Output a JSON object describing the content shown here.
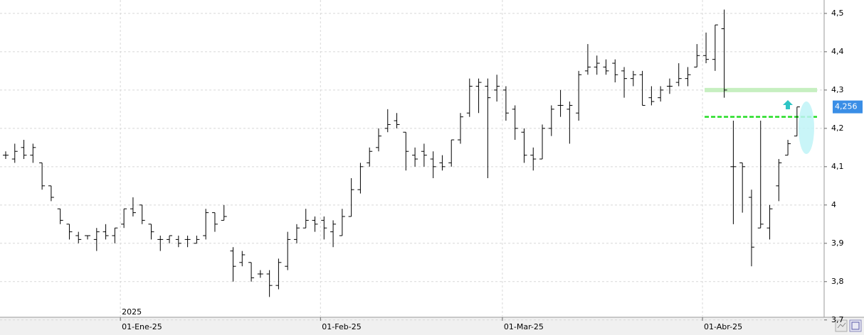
{
  "chart_data": {
    "type": "ohlc",
    "year_label": "2025",
    "categories": [
      null,
      null,
      null,
      null,
      null,
      null,
      null,
      null,
      null,
      null,
      null,
      null,
      null,
      "01-Ene-25",
      null,
      null,
      null,
      null,
      null,
      null,
      null,
      null,
      null,
      null,
      null,
      null,
      null,
      null,
      null,
      null,
      null,
      null,
      null,
      null,
      null,
      "01-Feb-25",
      null,
      null,
      null,
      null,
      null,
      null,
      null,
      null,
      null,
      null,
      null,
      null,
      null,
      null,
      null,
      null,
      null,
      null,
      null,
      "01-Mar-25",
      null,
      null,
      null,
      null,
      null,
      null,
      null,
      null,
      null,
      null,
      null,
      null,
      null,
      null,
      null,
      null,
      null,
      null,
      null,
      null,
      null,
      "01-Abr-25",
      null,
      null,
      null,
      null,
      null,
      null,
      null,
      null,
      null,
      null
    ],
    "open": [
      4.13,
      4.12,
      4.15,
      4.13,
      4.11,
      4.05,
      3.99,
      3.95,
      3.92,
      3.92,
      3.91,
      3.93,
      3.92,
      3.95,
      3.99,
      4.0,
      3.95,
      3.91,
      3.91,
      3.91,
      3.91,
      3.9,
      3.92,
      3.98,
      3.96,
      3.88,
      3.85,
      3.85,
      3.82,
      3.82,
      3.79,
      3.84,
      3.91,
      3.94,
      3.96,
      3.96,
      3.93,
      3.92,
      3.97,
      4.04,
      4.11,
      4.15,
      4.2,
      4.22,
      4.19,
      4.13,
      4.14,
      4.12,
      4.11,
      4.11,
      4.17,
      4.24,
      4.31,
      4.31,
      4.3,
      4.3,
      4.25,
      4.19,
      4.13,
      4.12,
      4.2,
      4.26,
      4.25,
      4.24,
      4.35,
      4.36,
      4.36,
      4.37,
      4.35,
      4.33,
      4.34,
      4.28,
      4.28,
      4.31,
      4.32,
      4.33,
      4.36,
      4.39,
      4.38,
      4.46,
      4.1,
      4.11,
      4.02,
      3.94,
      3.94,
      4.05,
      4.13,
      4.18
    ],
    "high": [
      4.14,
      4.16,
      4.17,
      4.16,
      4.11,
      4.05,
      3.99,
      3.95,
      3.93,
      3.92,
      3.94,
      3.95,
      3.94,
      3.99,
      4.02,
      4.0,
      3.95,
      3.92,
      3.92,
      3.92,
      3.92,
      3.92,
      3.99,
      3.98,
      4.0,
      3.89,
      3.88,
      3.85,
      3.83,
      3.83,
      3.86,
      3.93,
      3.95,
      3.99,
      3.97,
      3.97,
      3.96,
      3.99,
      4.07,
      4.11,
      4.15,
      4.2,
      4.25,
      4.24,
      4.19,
      4.15,
      4.16,
      4.14,
      4.13,
      4.17,
      4.24,
      4.33,
      4.33,
      4.33,
      4.34,
      4.31,
      4.26,
      4.2,
      4.15,
      4.21,
      4.26,
      4.3,
      4.27,
      4.35,
      4.42,
      4.39,
      4.38,
      4.38,
      4.36,
      4.35,
      4.35,
      4.31,
      4.31,
      4.33,
      4.37,
      4.36,
      4.42,
      4.45,
      4.47,
      4.51,
      4.22,
      4.11,
      4.04,
      4.22,
      4.0,
      4.12,
      4.17,
      4.256
    ],
    "low": [
      4.12,
      4.11,
      4.12,
      4.11,
      4.04,
      4.01,
      3.95,
      3.91,
      3.9,
      3.91,
      3.88,
      3.91,
      3.9,
      3.94,
      3.97,
      3.95,
      3.91,
      3.88,
      3.9,
      3.89,
      3.89,
      3.9,
      3.91,
      3.93,
      3.96,
      3.8,
      3.84,
      3.8,
      3.81,
      3.76,
      3.78,
      3.83,
      3.9,
      3.94,
      3.93,
      3.91,
      3.89,
      3.92,
      3.97,
      4.03,
      4.1,
      4.14,
      4.19,
      4.2,
      4.09,
      4.1,
      4.1,
      4.07,
      4.09,
      4.1,
      4.16,
      4.23,
      4.24,
      4.07,
      4.27,
      4.22,
      4.17,
      4.11,
      4.09,
      4.12,
      4.18,
      4.23,
      4.16,
      4.22,
      4.34,
      4.34,
      4.34,
      4.32,
      4.28,
      4.31,
      4.26,
      4.26,
      4.27,
      4.29,
      4.31,
      4.31,
      4.36,
      4.37,
      4.35,
      4.28,
      3.95,
      3.98,
      3.84,
      3.94,
      3.91,
      4.01,
      4.13,
      4.18
    ],
    "close": [
      4.13,
      4.14,
      4.13,
      4.15,
      4.05,
      4.02,
      3.96,
      3.93,
      3.91,
      3.92,
      3.93,
      3.92,
      3.94,
      3.99,
      3.98,
      3.96,
      3.93,
      3.91,
      3.92,
      3.9,
      3.91,
      3.91,
      3.98,
      3.95,
      3.97,
      3.84,
      3.87,
      3.81,
      3.82,
      3.79,
      3.85,
      3.91,
      3.94,
      3.96,
      3.95,
      3.94,
      3.95,
      3.97,
      4.04,
      4.1,
      4.14,
      4.18,
      4.21,
      4.21,
      4.14,
      4.12,
      4.13,
      4.1,
      4.1,
      4.17,
      4.23,
      4.31,
      4.32,
      4.28,
      4.31,
      4.24,
      4.2,
      4.13,
      4.12,
      4.2,
      4.25,
      4.26,
      4.26,
      4.34,
      4.36,
      4.37,
      4.35,
      4.34,
      4.33,
      4.34,
      4.26,
      4.27,
      4.3,
      4.31,
      4.33,
      4.34,
      4.39,
      4.38,
      4.47,
      4.3,
      4.1,
      4.1,
      3.89,
      3.95,
      3.99,
      4.11,
      4.16,
      4.256
    ],
    "color": "#000000",
    "ylim": [
      3.707,
      4.535
    ],
    "yticks": [
      {
        "value": 3.7,
        "label": "3,7"
      },
      {
        "value": 3.8,
        "label": "3,8"
      },
      {
        "value": 3.9,
        "label": "3,9"
      },
      4,
      {
        "value": 4.1,
        "label": "4,1"
      },
      {
        "value": 4.2,
        "label": "4,2"
      },
      {
        "value": 4.3,
        "label": "4,3"
      },
      {
        "value": 4.4,
        "label": "4,4"
      },
      {
        "value": 4.5,
        "label": "4,5"
      }
    ],
    "grid": true,
    "last_price": {
      "value": 4.256,
      "label": "4,256",
      "color": "#3a8ee6"
    },
    "hlines": [
      {
        "value": 4.3,
        "color": "#c6efc0",
        "style": "solid"
      },
      {
        "value": 4.23,
        "color": "#22dd22",
        "style": "dashed"
      }
    ]
  }
}
